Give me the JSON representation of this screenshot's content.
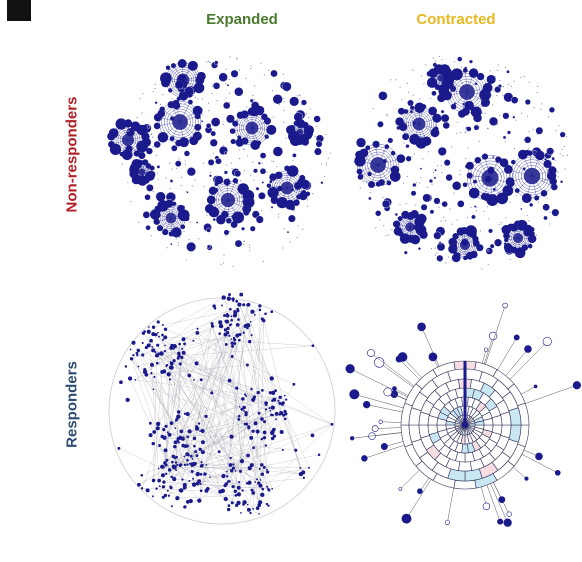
{
  "column_headers": [
    {
      "label": "Expanded",
      "color": "#4a7a2c"
    },
    {
      "label": "Contracted",
      "color": "#e7b820"
    }
  ],
  "row_headers": [
    {
      "label": "Non-responders",
      "color": "#b22028"
    },
    {
      "label": "Responders",
      "color": "#2e4d73"
    }
  ],
  "colors": {
    "node": "#1a1a8c",
    "edge": "#9a9aa6",
    "fill_light": "#c9e6f3",
    "fill_pink": "#f6dde2",
    "background": "#ffffff"
  },
  "panels": [
    {
      "id": "nonresponders-expanded",
      "row": "Non-responders",
      "column": "Expanded",
      "layout": "clustered-circles"
    },
    {
      "id": "nonresponders-contracted",
      "row": "Non-responders",
      "column": "Contracted",
      "layout": "clustered-circles"
    },
    {
      "id": "responders-expanded",
      "row": "Responders",
      "column": "Expanded",
      "layout": "dense-network"
    },
    {
      "id": "responders-contracted",
      "row": "Responders",
      "column": "Contracted",
      "layout": "radial-hub"
    }
  ]
}
